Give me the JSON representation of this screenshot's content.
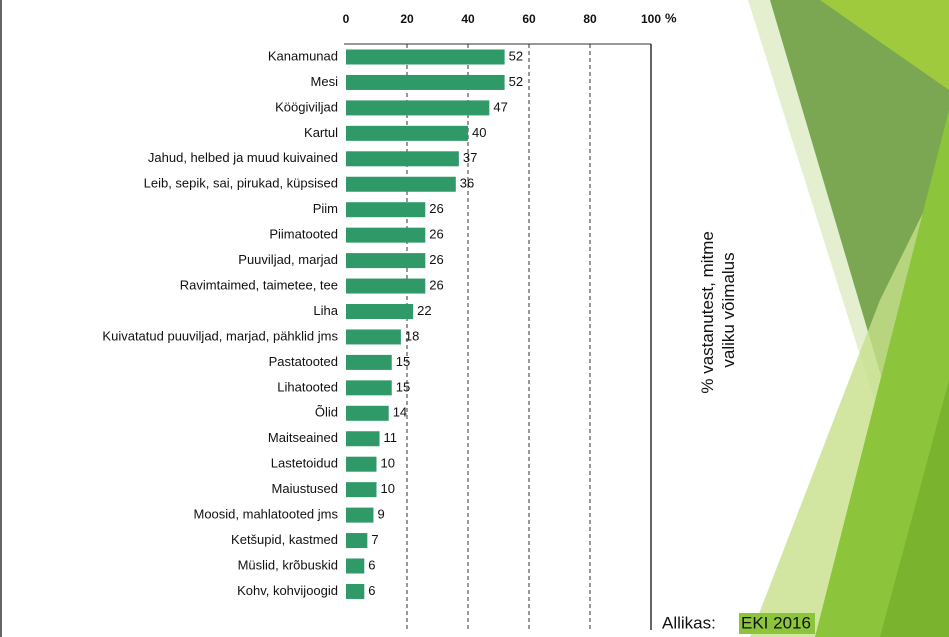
{
  "chart_data": {
    "type": "bar",
    "orientation": "horizontal",
    "categories": [
      "Kanamunad",
      "Mesi",
      "Köögiviljad",
      "Kartul",
      "Jahud, helbed ja muud kuivained",
      "Leib, sepik, sai, pirukad, küpsised",
      "Piim",
      "Piimatooted",
      "Puuviljad, marjad",
      "Ravimtaimed, taimetee, tee",
      "Liha",
      "Kuivatatud puuviljad, marjad, pähklid jms",
      "Pastatooted",
      "Lihatooted",
      "Õlid",
      "Maitseained",
      "Lastetoidud",
      "Maiustused",
      "Moosid, mahlatooted jms",
      "Ketšupid, kastmed",
      "Müslid, krõbuskid",
      "Kohv, kohvijoogid"
    ],
    "values": [
      52,
      52,
      47,
      40,
      37,
      36,
      26,
      26,
      26,
      26,
      22,
      18,
      15,
      15,
      14,
      11,
      10,
      10,
      9,
      7,
      6,
      6
    ],
    "color": "#2f9a68",
    "xlim": [
      0,
      100
    ],
    "xticks": [
      0,
      20,
      40,
      60,
      80,
      100
    ],
    "xlabel": "%",
    "grid": true,
    "annotation": [
      "% vastanutest, mitme",
      "valiku võimalus"
    ],
    "source_prefix": "Allikas:",
    "source": "EKI 2016"
  }
}
